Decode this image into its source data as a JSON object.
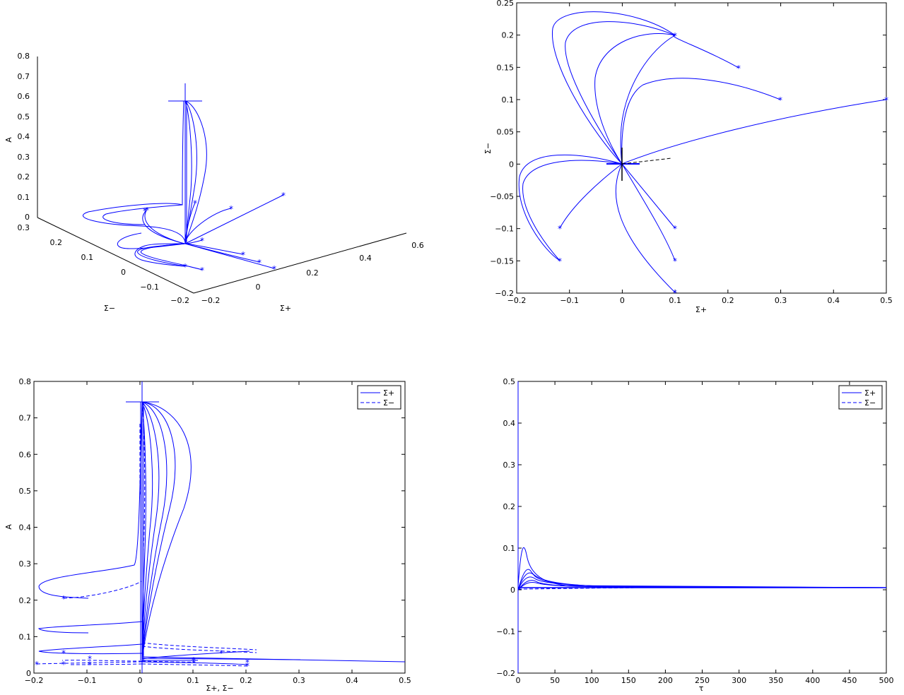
{
  "chart_data": [
    {
      "type": "line",
      "panel": "3d",
      "title": "",
      "axes": {
        "x": {
          "label": "Σ+",
          "ticks": [
            -0.2,
            0,
            0.2,
            0.4,
            0.6
          ],
          "lim": [
            -0.2,
            0.6
          ]
        },
        "y": {
          "label": "Σ−",
          "ticks": [
            -0.2,
            -0.1,
            0,
            0.1,
            0.2,
            0.3
          ],
          "lim": [
            -0.2,
            0.3
          ]
        },
        "z": {
          "label": "A",
          "ticks": [
            0,
            0.1,
            0.2,
            0.3,
            0.4,
            0.5,
            0.6,
            0.7,
            0.8
          ],
          "lim": [
            0,
            0.8
          ]
        }
      },
      "marker_point": {
        "sp": 0,
        "sm": 0,
        "a": 0.742
      },
      "start_points": [
        {
          "sp": 0.5,
          "sm": 0.1,
          "a": 0.023
        },
        {
          "sp": 0.3,
          "sm": 0.1,
          "a": 0.028
        },
        {
          "sp": 0.22,
          "sm": 0.15,
          "a": 0.05
        },
        {
          "sp": 0.1,
          "sm": 0.2,
          "a": 0.018
        },
        {
          "sp": 0.1,
          "sm": -0.1,
          "a": 0.02
        },
        {
          "sp": 0.1,
          "sm": -0.15,
          "a": 0.03
        },
        {
          "sp": 0.1,
          "sm": -0.2,
          "a": 0.015
        },
        {
          "sp": -0.12,
          "sm": -0.1,
          "a": 0.035
        },
        {
          "sp": -0.12,
          "sm": -0.15,
          "a": 0.05
        },
        {
          "sp": -0.15,
          "sm": 0.2,
          "a": 0.2
        }
      ]
    },
    {
      "type": "line",
      "panel": "phase",
      "title": "",
      "xlabel": "Σ+",
      "ylabel": "Σ−",
      "xlim": [
        -0.2,
        0.5
      ],
      "ylim": [
        -0.2,
        0.25
      ],
      "xticks": [
        -0.2,
        -0.1,
        0,
        0.1,
        0.2,
        0.3,
        0.4,
        0.5
      ],
      "yticks": [
        -0.2,
        -0.15,
        -0.1,
        -0.05,
        0,
        0.05,
        0.1,
        0.15,
        0.2,
        0.25
      ],
      "marker_point": {
        "x": 0,
        "y": 0
      },
      "start_points": [
        {
          "x": 0.5,
          "y": 0.1
        },
        {
          "x": 0.3,
          "y": 0.1
        },
        {
          "x": 0.22,
          "y": 0.15
        },
        {
          "x": 0.1,
          "y": 0.2
        },
        {
          "x": 0.1,
          "y": -0.1
        },
        {
          "x": 0.1,
          "y": -0.15
        },
        {
          "x": 0.1,
          "y": -0.2
        },
        {
          "x": -0.12,
          "y": -0.1
        },
        {
          "x": -0.12,
          "y": -0.15
        }
      ]
    },
    {
      "type": "line",
      "panel": "amplitude",
      "title": "",
      "xlabel": "Σ+, Σ−",
      "ylabel": "A",
      "xlim": [
        -0.2,
        0.5
      ],
      "ylim": [
        0,
        0.8
      ],
      "xticks": [
        -0.2,
        -0.1,
        0,
        0.1,
        0.2,
        0.3,
        0.4,
        0.5
      ],
      "yticks": [
        0,
        0.1,
        0.2,
        0.3,
        0.4,
        0.5,
        0.6,
        0.7,
        0.8
      ],
      "legend": [
        "Σ+",
        "Σ−"
      ],
      "legend_position": "top-right",
      "marker_point": {
        "x": 0,
        "y": 0.742
      },
      "start_points": [
        {
          "x": -0.2,
          "y": 0.02
        },
        {
          "x": -0.15,
          "y": 0.015
        },
        {
          "x": -0.15,
          "y": 0.05
        },
        {
          "x": -0.15,
          "y": 0.2
        },
        {
          "x": -0.1,
          "y": 0.015
        },
        {
          "x": -0.1,
          "y": 0.035
        },
        {
          "x": 0.1,
          "y": 0.025
        },
        {
          "x": 0.1,
          "y": 0.03
        },
        {
          "x": 0.15,
          "y": 0.05
        },
        {
          "x": 0.2,
          "y": 0.012
        },
        {
          "x": 0.2,
          "y": 0.018
        }
      ]
    },
    {
      "type": "line",
      "panel": "time",
      "title": "",
      "xlabel": "τ",
      "ylabel": "",
      "xlim": [
        0,
        500
      ],
      "ylim": [
        -0.2,
        0.5
      ],
      "xticks": [
        0,
        50,
        100,
        150,
        200,
        250,
        300,
        350,
        400,
        450,
        500
      ],
      "yticks": [
        -0.2,
        -0.1,
        0,
        0.1,
        0.2,
        0.3,
        0.4,
        0.5
      ],
      "legend": [
        "Σ+",
        "Σ−"
      ],
      "legend_position": "top-right",
      "peak_values": [
        0.093,
        0.048,
        0.035,
        0.028,
        0.02,
        0.015,
        0.01
      ]
    }
  ]
}
